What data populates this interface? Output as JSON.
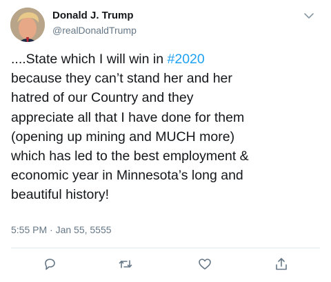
{
  "tweet": {
    "author_name": "Donald J. Trump",
    "author_handle": "@realDonaldTrump",
    "text_before_hashtag": "....State which I will win in ",
    "hashtag": "#2020",
    "text_after_hashtag": "\nbecause they can’t stand her and her\nhatred of our Country and they\nappreciate all that I have done for them\n(opening up mining and MUCH more)\nwhich has led to the best employment &\neconomic year in Minnesota’s long and\nbeautiful history!",
    "timestamp": "5:55 PM · Jan 55, 5555"
  },
  "icons": {
    "avatar": "profile-photo",
    "menu": "chevron-down-icon",
    "reply": "reply-icon",
    "retweet": "retweet-icon",
    "like": "heart-icon",
    "share": "share-icon"
  },
  "colors": {
    "text": "#14171a",
    "secondary": "#657786",
    "link": "#1da1f2",
    "divider": "#e1e8ed",
    "icon": "#657786"
  }
}
